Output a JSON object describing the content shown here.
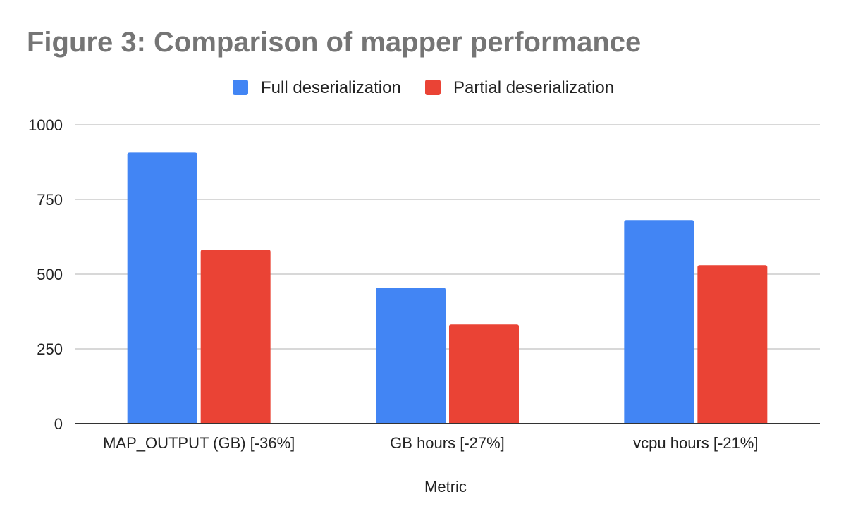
{
  "chart_data": {
    "type": "bar",
    "title": "Figure 3: Comparison of mapper performance",
    "xlabel": "Metric",
    "ylabel": "",
    "categories": [
      "MAP_OUTPUT (GB) [-36%]",
      "GB hours [-27%]",
      "vcpu hours [-21%]"
    ],
    "series": [
      {
        "name": "Full deserialization",
        "color": "#4285f4",
        "values": [
          907,
          455,
          681
        ]
      },
      {
        "name": "Partial deserialization",
        "color": "#ea4335",
        "values": [
          582,
          332,
          530
        ]
      }
    ],
    "ylim": [
      0,
      1000
    ],
    "yticks": [
      0,
      250,
      500,
      750,
      1000
    ],
    "grid": true,
    "legend_position": "top"
  }
}
